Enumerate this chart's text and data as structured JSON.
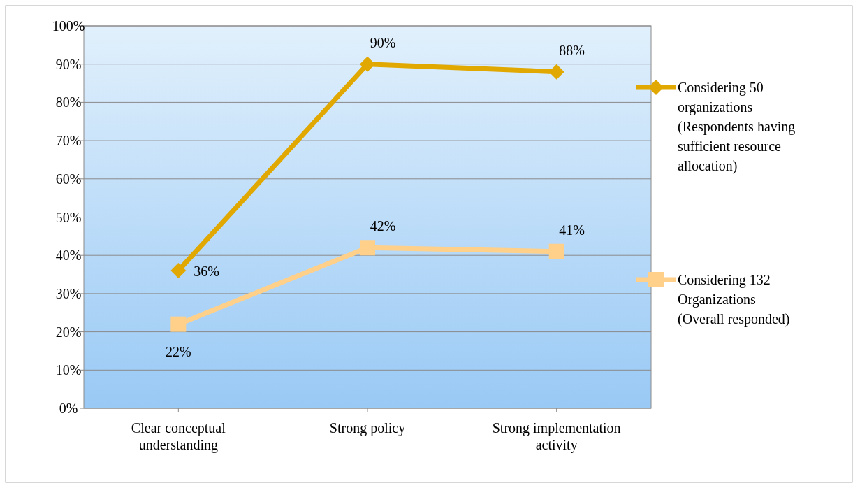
{
  "chart_data": {
    "type": "line",
    "categories": [
      "Clear conceptual understanding",
      "Strong policy",
      "Strong implementation activity"
    ],
    "series": [
      {
        "name": "Considering 50 organizations (Respondents having sufficient resource allocation)",
        "color": "#e0a800",
        "marker": "diamond",
        "values": [
          36,
          90,
          88
        ],
        "value_labels": [
          "36%",
          "90%",
          "88%"
        ]
      },
      {
        "name": "Considering 132 Organizations (Overall responded)",
        "color": "#ffd08a",
        "marker": "square",
        "values": [
          22,
          42,
          41
        ],
        "value_labels": [
          "22%",
          "42%",
          "41%"
        ]
      }
    ],
    "ylim": [
      0,
      100
    ],
    "yticks": [
      {
        "value": 0,
        "label": "0%"
      },
      {
        "value": 10,
        "label": "10%"
      },
      {
        "value": 20,
        "label": "20%"
      },
      {
        "value": 30,
        "label": "30%"
      },
      {
        "value": 40,
        "label": "40%"
      },
      {
        "value": 50,
        "label": "50%"
      },
      {
        "value": 60,
        "label": "60%"
      },
      {
        "value": 70,
        "label": "70%"
      },
      {
        "value": 80,
        "label": "80%"
      },
      {
        "value": 90,
        "label": "90%"
      },
      {
        "value": 100,
        "label": "100%"
      }
    ],
    "grid": "y",
    "legend": "right",
    "line_style": "solid"
  }
}
